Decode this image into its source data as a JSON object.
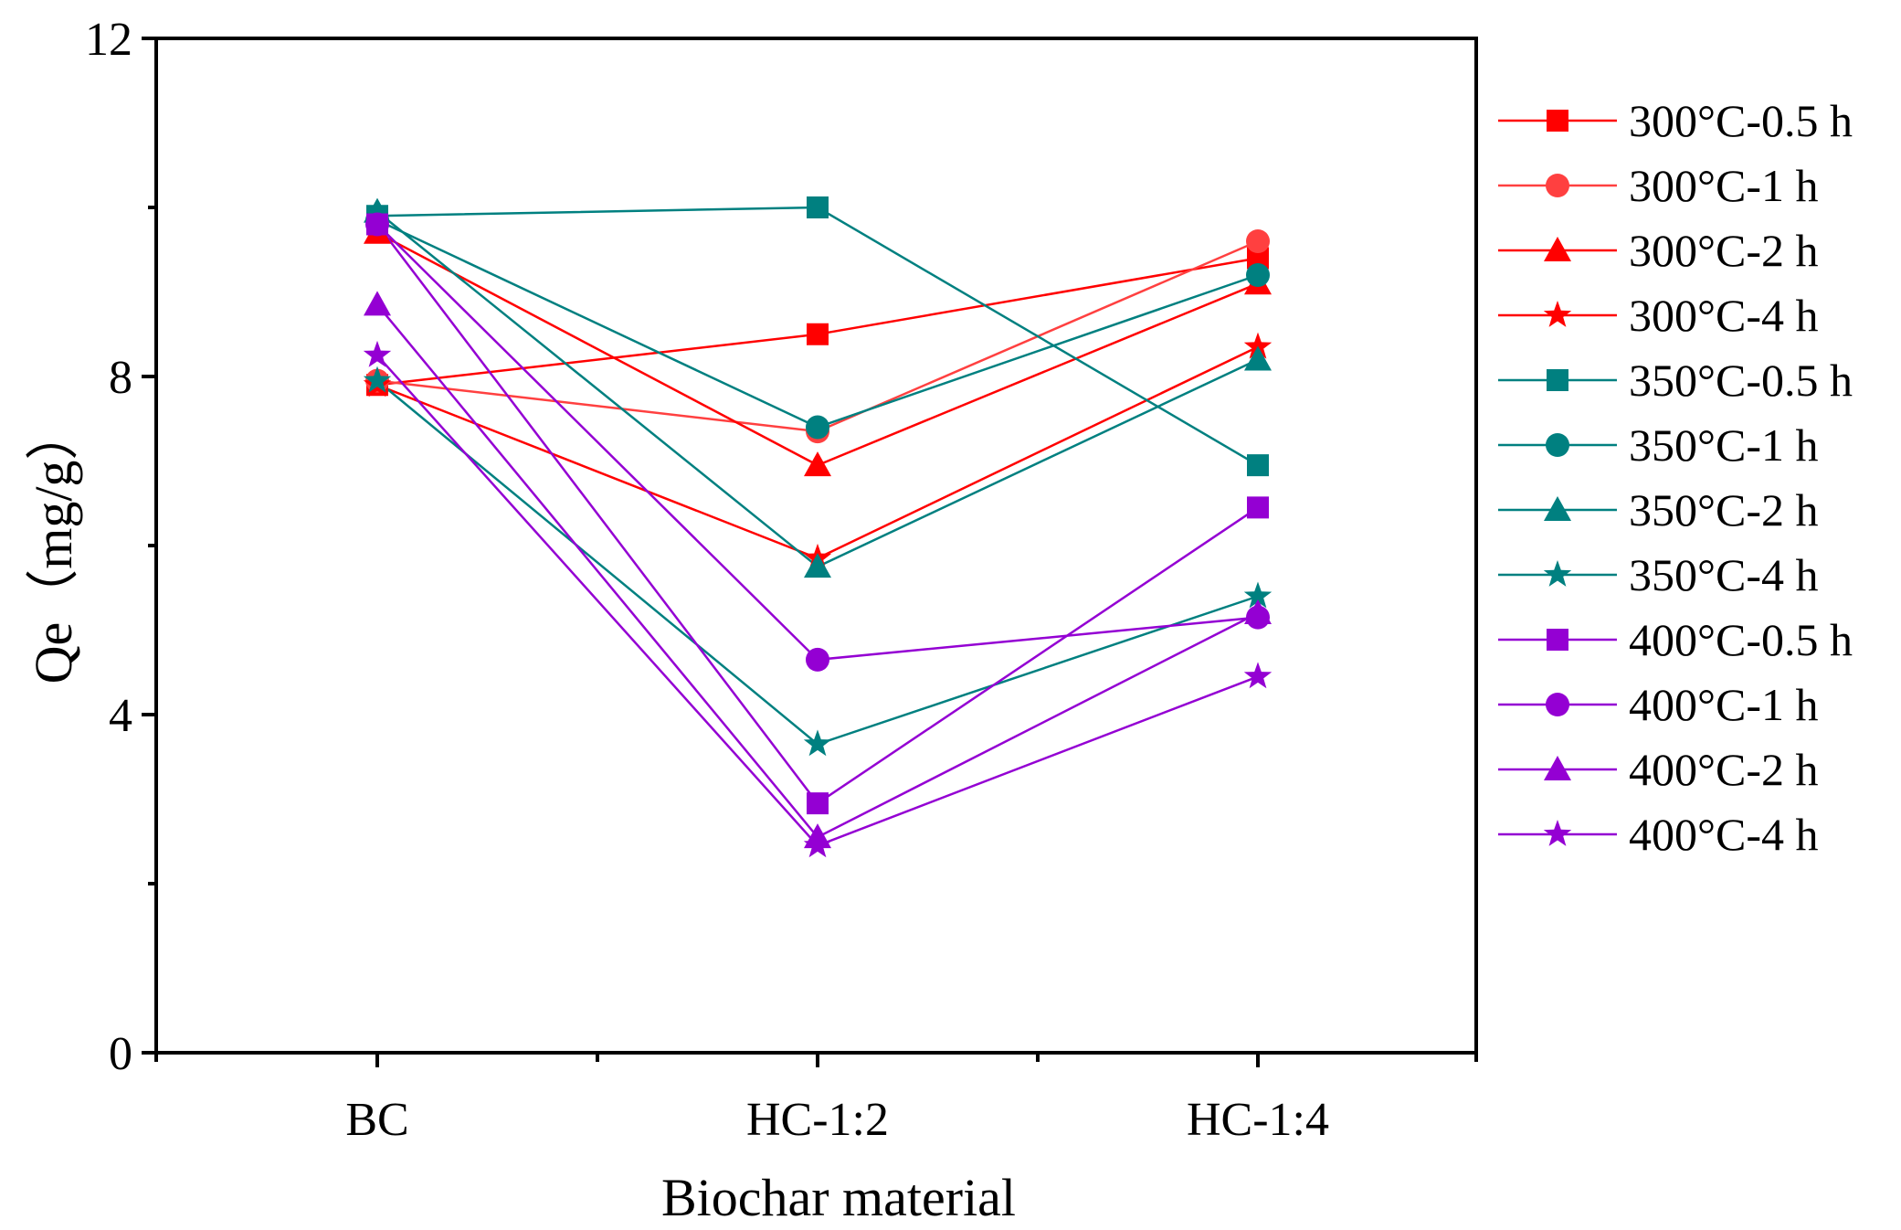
{
  "chart_data": {
    "type": "line",
    "title": "",
    "xlabel": "Biochar material",
    "ylabel": "Qe（mg/g）",
    "categories": [
      "BC",
      "HC-1:2",
      "HC-1:4"
    ],
    "ylim": [
      0,
      12
    ],
    "yticks": [
      "0",
      "4",
      "8",
      "12"
    ],
    "legend_position": "right",
    "series": [
      {
        "name": "300°C-0.5 h",
        "color": "#ff0000",
        "marker": "square",
        "values": [
          7.9,
          8.5,
          9.4
        ]
      },
      {
        "name": "300°C-1 h",
        "color": "#ff4040",
        "marker": "circle",
        "values": [
          7.95,
          7.35,
          9.6
        ]
      },
      {
        "name": "300°C-2 h",
        "color": "#ff0000",
        "marker": "triangle",
        "values": [
          9.7,
          6.95,
          9.1
        ]
      },
      {
        "name": "300°C-4 h",
        "color": "#ff0000",
        "marker": "star",
        "values": [
          7.9,
          5.85,
          8.35
        ]
      },
      {
        "name": "350°C-0.5 h",
        "color": "#008080",
        "marker": "square",
        "values": [
          9.9,
          10.0,
          6.95
        ]
      },
      {
        "name": "350°C-1 h",
        "color": "#008080",
        "marker": "circle",
        "values": [
          9.85,
          7.4,
          9.2
        ]
      },
      {
        "name": "350°C-2 h",
        "color": "#008080",
        "marker": "triangle",
        "values": [
          9.95,
          5.75,
          8.2
        ]
      },
      {
        "name": "350°C-4 h",
        "color": "#008080",
        "marker": "star",
        "values": [
          7.95,
          3.65,
          5.4
        ]
      },
      {
        "name": "400°C-0.5 h",
        "color": "#9400d3",
        "marker": "square",
        "values": [
          9.8,
          2.95,
          6.45
        ]
      },
      {
        "name": "400°C-1 h",
        "color": "#9400d3",
        "marker": "circle",
        "values": [
          9.8,
          4.65,
          5.15
        ]
      },
      {
        "name": "400°C-2 h",
        "color": "#9400d3",
        "marker": "triangle",
        "values": [
          8.85,
          2.55,
          5.2
        ]
      },
      {
        "name": "400°C-4 h",
        "color": "#9400d3",
        "marker": "star",
        "values": [
          8.25,
          2.45,
          4.45
        ]
      }
    ]
  }
}
